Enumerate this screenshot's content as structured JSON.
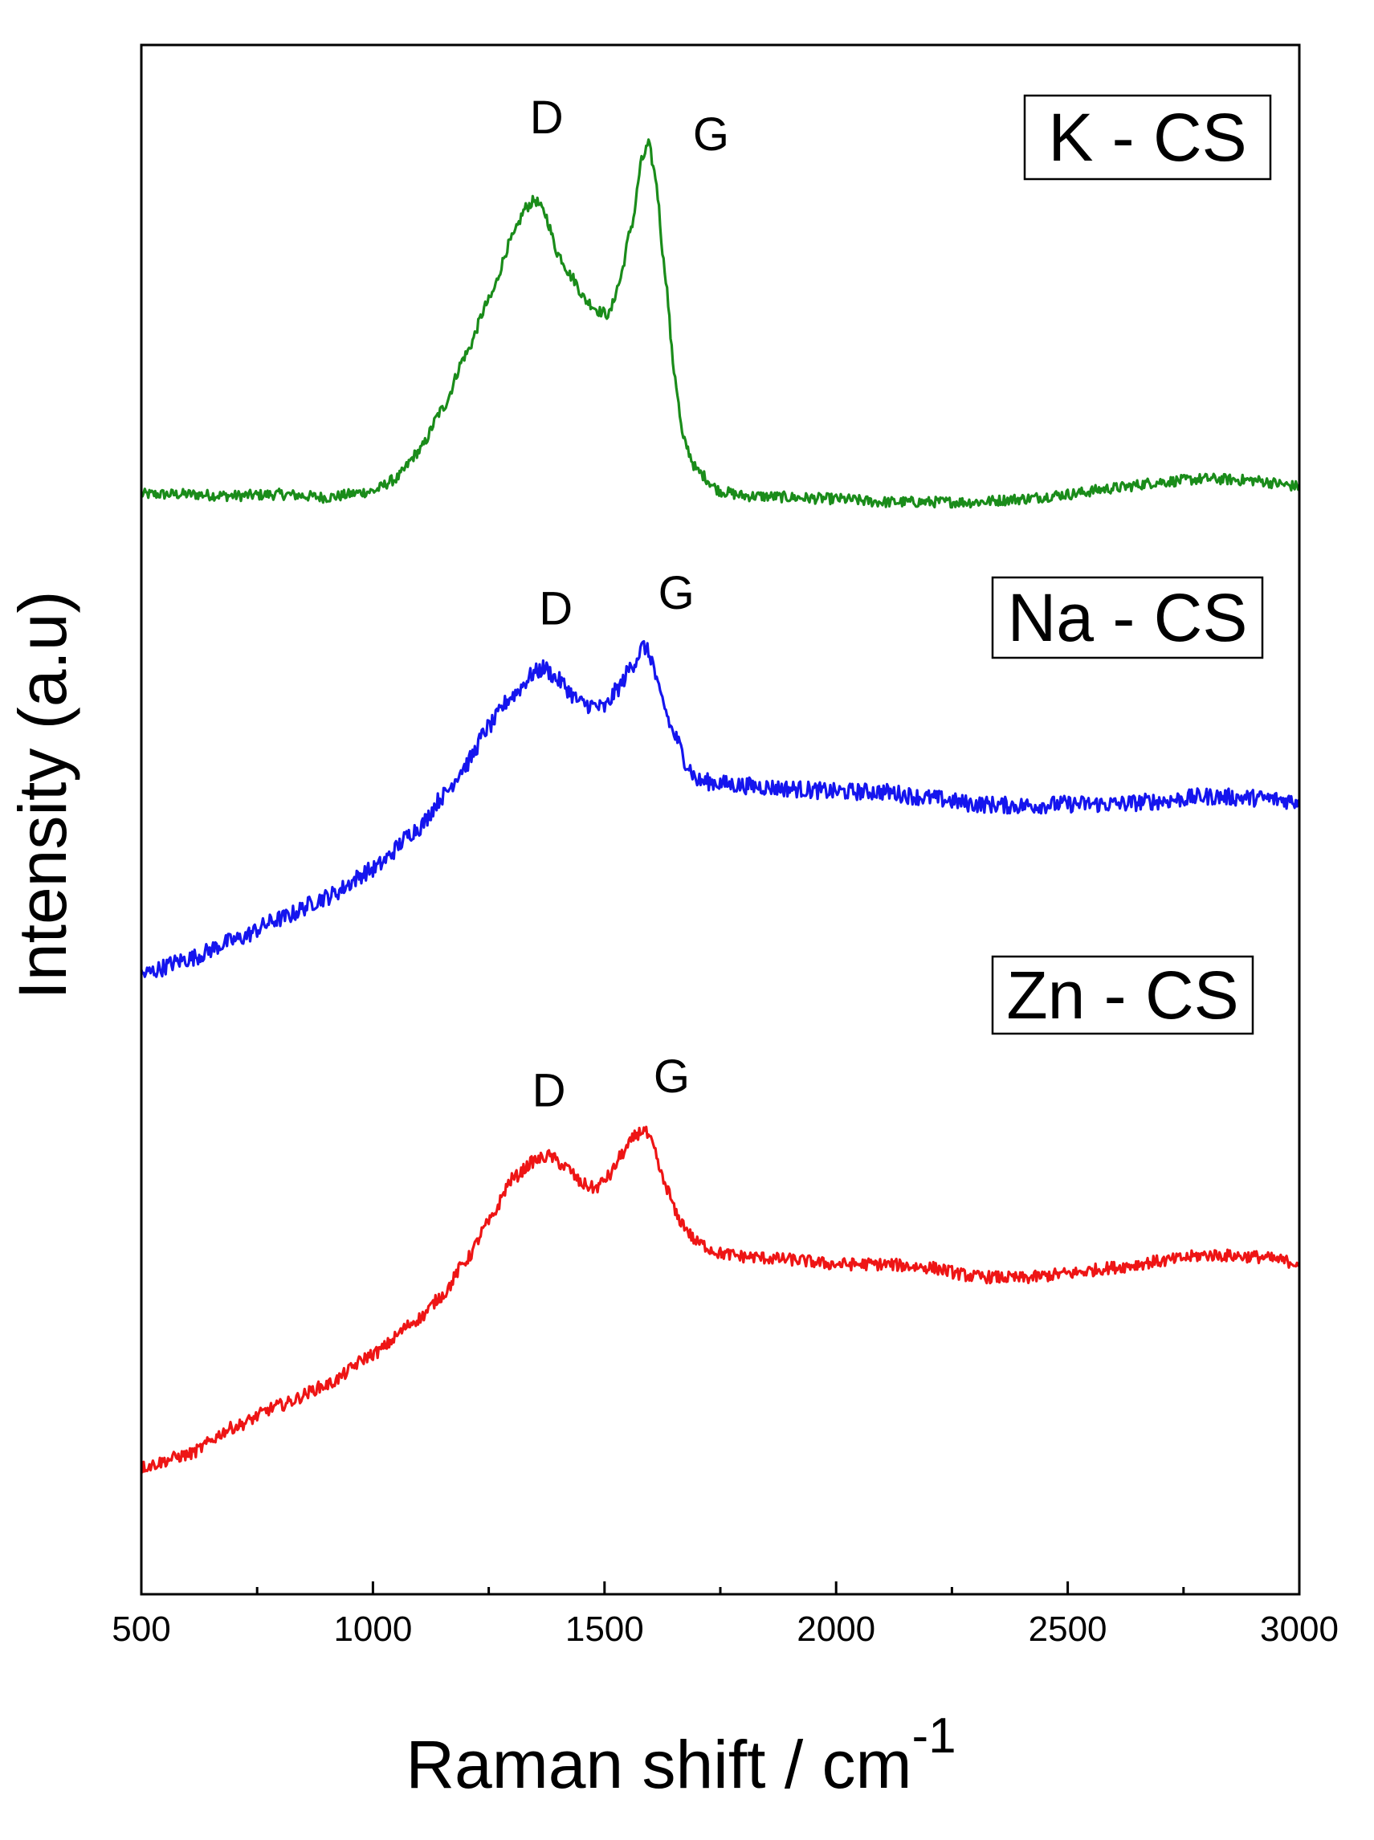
{
  "chart_data": {
    "type": "line",
    "title": "",
    "xlabel": "Raman shift / cm",
    "xlabel_superscript": "-1",
    "ylabel": "Intensity (a.u)",
    "xlim": [
      500,
      3000
    ],
    "ylim": [
      0,
      100
    ],
    "x_ticks": [
      500,
      1000,
      1500,
      2000,
      2500,
      3000
    ],
    "x_tick_labels": [
      "500",
      "1000",
      "1500",
      "2000",
      "2500",
      "3000"
    ],
    "y_ticks_shown": false,
    "grid": false,
    "series": [
      {
        "name": "K - CS",
        "color": "#1a8c1a",
        "noise": 0.35,
        "points": [
          [
            500,
            71.0
          ],
          [
            600,
            71.0
          ],
          [
            700,
            70.9
          ],
          [
            800,
            71.0
          ],
          [
            900,
            70.8
          ],
          [
            1000,
            71.2
          ],
          [
            1050,
            72.0
          ],
          [
            1100,
            73.8
          ],
          [
            1150,
            76.5
          ],
          [
            1200,
            80.0
          ],
          [
            1250,
            83.5
          ],
          [
            1300,
            87.5
          ],
          [
            1330,
            89.5
          ],
          [
            1350,
            90.0
          ],
          [
            1370,
            89.2
          ],
          [
            1400,
            86.5
          ],
          [
            1430,
            85.0
          ],
          [
            1460,
            83.5
          ],
          [
            1490,
            82.8
          ],
          [
            1510,
            82.6
          ],
          [
            1530,
            84.5
          ],
          [
            1560,
            88.5
          ],
          [
            1580,
            92.5
          ],
          [
            1595,
            93.6
          ],
          [
            1610,
            91.5
          ],
          [
            1630,
            85.5
          ],
          [
            1650,
            79.0
          ],
          [
            1670,
            74.5
          ],
          [
            1700,
            72.5
          ],
          [
            1750,
            71.2
          ],
          [
            1800,
            70.9
          ],
          [
            2000,
            70.7
          ],
          [
            2100,
            70.5
          ],
          [
            2300,
            70.5
          ],
          [
            2400,
            70.7
          ],
          [
            2500,
            71.0
          ],
          [
            2600,
            71.4
          ],
          [
            2700,
            71.8
          ],
          [
            2800,
            72.0
          ],
          [
            2900,
            71.9
          ],
          [
            3000,
            71.5
          ]
        ],
        "peak_labels": [
          {
            "label": "D",
            "x": 1375,
            "y": 94.3
          },
          {
            "label": "G",
            "x": 1730,
            "y": 93.2
          }
        ]
      },
      {
        "name": "Na - CS",
        "color": "#1515ee",
        "noise": 0.55,
        "points": [
          [
            500,
            40.0
          ],
          [
            600,
            41.0
          ],
          [
            700,
            42.2
          ],
          [
            800,
            43.6
          ],
          [
            900,
            45.0
          ],
          [
            1000,
            46.8
          ],
          [
            1100,
            49.5
          ],
          [
            1150,
            51.5
          ],
          [
            1200,
            53.5
          ],
          [
            1250,
            56.0
          ],
          [
            1300,
            58.0
          ],
          [
            1350,
            59.5
          ],
          [
            1370,
            59.8
          ],
          [
            1400,
            59.0
          ],
          [
            1450,
            57.5
          ],
          [
            1500,
            57.2
          ],
          [
            1530,
            58.5
          ],
          [
            1560,
            60.0
          ],
          [
            1585,
            61.2
          ],
          [
            1600,
            60.5
          ],
          [
            1620,
            58.0
          ],
          [
            1650,
            55.5
          ],
          [
            1680,
            53.5
          ],
          [
            1700,
            52.5
          ],
          [
            1800,
            52.2
          ],
          [
            1900,
            52.0
          ],
          [
            2000,
            51.8
          ],
          [
            2100,
            51.8
          ],
          [
            2200,
            51.4
          ],
          [
            2300,
            51.0
          ],
          [
            2400,
            50.9
          ],
          [
            2500,
            51.0
          ],
          [
            2600,
            51.0
          ],
          [
            2700,
            51.2
          ],
          [
            2800,
            51.5
          ],
          [
            2900,
            51.4
          ],
          [
            3000,
            51.2
          ]
        ],
        "peak_labels": [
          {
            "label": "D",
            "x": 1395,
            "y": 62.6
          },
          {
            "label": "G",
            "x": 1655,
            "y": 63.6
          }
        ]
      },
      {
        "name": "Zn - CS",
        "color": "#ee1515",
        "noise": 0.4,
        "points": [
          [
            500,
            8.2
          ],
          [
            600,
            9.0
          ],
          [
            700,
            10.8
          ],
          [
            800,
            12.2
          ],
          [
            900,
            13.5
          ],
          [
            1000,
            15.5
          ],
          [
            1100,
            17.8
          ],
          [
            1150,
            19.3
          ],
          [
            1200,
            21.5
          ],
          [
            1250,
            24.0
          ],
          [
            1300,
            26.8
          ],
          [
            1350,
            28.0
          ],
          [
            1380,
            28.3
          ],
          [
            1420,
            27.5
          ],
          [
            1450,
            26.5
          ],
          [
            1480,
            26.2
          ],
          [
            1510,
            27.0
          ],
          [
            1540,
            28.5
          ],
          [
            1570,
            29.7
          ],
          [
            1585,
            30.0
          ],
          [
            1600,
            29.2
          ],
          [
            1630,
            26.5
          ],
          [
            1660,
            24.2
          ],
          [
            1700,
            22.7
          ],
          [
            1750,
            22.0
          ],
          [
            1800,
            21.8
          ],
          [
            1900,
            21.6
          ],
          [
            2000,
            21.3
          ],
          [
            2100,
            21.3
          ],
          [
            2200,
            21.1
          ],
          [
            2300,
            20.5
          ],
          [
            2400,
            20.4
          ],
          [
            2500,
            20.7
          ],
          [
            2600,
            21.1
          ],
          [
            2700,
            21.5
          ],
          [
            2800,
            21.9
          ],
          [
            2900,
            21.8
          ],
          [
            3000,
            21.4
          ]
        ],
        "peak_labels": [
          {
            "label": "D",
            "x": 1380,
            "y": 31.5
          },
          {
            "label": "G",
            "x": 1645,
            "y": 32.4
          }
        ]
      }
    ],
    "legend_boxes": [
      {
        "label": "K - CS",
        "series": "K - CS"
      },
      {
        "label": "Na - CS",
        "series": "Na - CS"
      },
      {
        "label": "Zn - CS",
        "series": "Zn - CS"
      }
    ]
  }
}
